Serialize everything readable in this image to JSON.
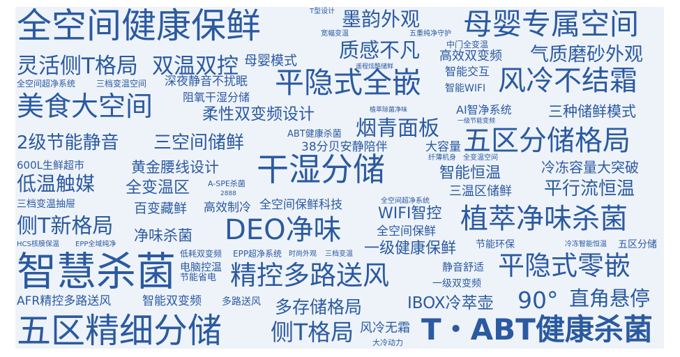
{
  "colors": {
    "text": "#2b5aa0",
    "background": "#eef3fa"
  },
  "words": [
    "全空间健康保鲜",
    "T型设计",
    "墨韵外观",
    "母婴专属空间",
    "宽幅变温",
    "五重纯净守护",
    "灵活侧T格局",
    "双温双控",
    "母婴模式",
    "质感不凡",
    "中门全变温",
    "高效双变频",
    "气质磨砂外观",
    "遥程炫酷储鲜",
    "智能交互",
    "全空间超净系统",
    "三档变温空间",
    "深夜静音不扰眠",
    "平隐式全嵌",
    "智能WIFI",
    "风冷不结霜",
    "美食大空间",
    "阻氧干湿分储",
    "柔性双变频设计",
    "植萃除菌净味",
    "AI智净系统",
    "三种储鲜模式",
    "一级节能变频",
    "2级节能静音",
    "三空间储鲜",
    "ABT健康杀菌",
    "烟青面板",
    "五区分储格局",
    "38分贝安静陪伴",
    "大容量",
    "纤薄机身",
    "全变温空间",
    "600L生鲜超市",
    "黄金腰线设计",
    "干湿分储",
    "冷冻容量大突破",
    "智能恒温",
    "低温触媒",
    "全变温区",
    "A-SPE杀菌",
    "2888",
    "三温区储鲜",
    "平行流恒温",
    "三档变温抽屉",
    "百变藏鲜",
    "高效制冷",
    "全空间保鲜科技",
    "全空间超净系统",
    "WIFI智控",
    "植萃净味杀菌",
    "侧T新格局",
    "净味杀菌",
    "DEO净味",
    "全空间保鲜",
    "HCS核膜保温",
    "EPP全域纯净",
    "节能环保",
    "冷冻智能恒温",
    "五区分储",
    "智慧杀菌",
    "低耗双变频",
    "EPP超净系统",
    "时尚外观",
    "三档变温",
    "一级健康保鲜",
    "电脑控温",
    "平隐式零嵌",
    "节能省电",
    "精控多路送风",
    "静音舒适",
    "一级双变频",
    "AFR精控多路送风",
    "智能双变频",
    "多路送风",
    "多存储格局",
    "IBOX冷萃壶",
    "90°",
    "直角悬停",
    "五区精细分储",
    "侧T格局",
    "风冷无霜",
    "T・ABT健康杀菌",
    "大冷动力"
  ]
}
